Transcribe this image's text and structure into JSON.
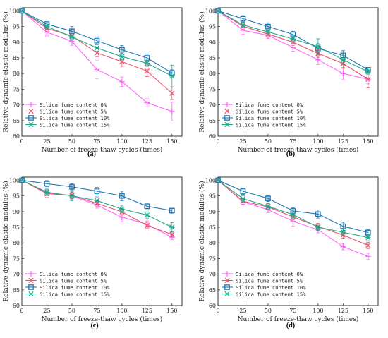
{
  "chart_data": [
    {
      "type": "line",
      "panel_label": "(a)",
      "xlabel": "Number of freeze-thaw cycles (times)",
      "ylabel": "Relative dynamic elastic modulus (%)",
      "x": [
        0,
        25,
        50,
        75,
        100,
        125,
        150
      ],
      "xlim": [
        0,
        160
      ],
      "ylim": [
        60,
        101
      ],
      "xticks": [
        "0",
        "25",
        "50",
        "75",
        "100",
        "125",
        "150"
      ],
      "yticks": [
        "60",
        "65",
        "70",
        "75",
        "80",
        "85",
        "90",
        "95",
        "100"
      ],
      "legend": "bottom-left",
      "series": [
        {
          "name": "Silica fume content 0%",
          "marker": "plus",
          "color": "#ff66ff",
          "values": [
            100,
            93.2,
            90.3,
            81.3,
            77.4,
            70.7,
            67.9
          ],
          "errors": [
            0,
            1.2,
            1.3,
            3.0,
            1.5,
            1.3,
            3.0
          ]
        },
        {
          "name": "Silica fume content 5%",
          "marker": "x",
          "color": "#e8556a",
          "values": [
            100,
            94.4,
            92.0,
            86.6,
            83.8,
            80.8,
            73.7
          ],
          "errors": [
            0,
            1.0,
            1.3,
            1.2,
            1.5,
            1.8,
            2.0
          ]
        },
        {
          "name": "Silica fume content 10%",
          "marker": "square",
          "color": "#1f77b4",
          "values": [
            100,
            95.8,
            93.5,
            90.5,
            87.6,
            85.0,
            80.2
          ],
          "errors": [
            0,
            0.8,
            1.5,
            1.2,
            1.3,
            1.2,
            1.0
          ]
        },
        {
          "name": "Silica fume content 15%",
          "marker": "cross",
          "color": "#20a88a",
          "values": [
            100,
            95.0,
            91.7,
            88.2,
            85.4,
            83.3,
            79.2
          ],
          "errors": [
            0,
            0.8,
            1.0,
            1.0,
            1.0,
            1.0,
            3.5
          ]
        }
      ]
    },
    {
      "type": "line",
      "panel_label": "(b)",
      "xlabel": "Number of freeze-thaw cycles (times)",
      "ylabel": "Relative dynamic elastic modulus (%)",
      "x": [
        0,
        25,
        50,
        75,
        100,
        125,
        150
      ],
      "xlim": [
        0,
        160
      ],
      "ylim": [
        60,
        101
      ],
      "xticks": [
        "0",
        "25",
        "50",
        "75",
        "100",
        "125",
        "150"
      ],
      "yticks": [
        "60",
        "65",
        "70",
        "75",
        "80",
        "85",
        "90",
        "95",
        "100"
      ],
      "legend": "bottom-left",
      "series": [
        {
          "name": "Silica fume content 0%",
          "marker": "plus",
          "color": "#ff66ff",
          "values": [
            100,
            93.8,
            92.2,
            88.3,
            84.4,
            80.0,
            78.2
          ],
          "errors": [
            0,
            1.3,
            1.0,
            1.2,
            1.5,
            2.0,
            1.5
          ]
        },
        {
          "name": "Silica fume content 5%",
          "marker": "x",
          "color": "#e8556a",
          "values": [
            100,
            95.1,
            92.6,
            90.0,
            86.4,
            83.2,
            78.2
          ],
          "errors": [
            0,
            1.0,
            1.0,
            1.0,
            1.2,
            1.5,
            2.8
          ]
        },
        {
          "name": "Silica fume content 10%",
          "marker": "square",
          "color": "#1f77b4",
          "values": [
            100,
            97.5,
            95.0,
            92.5,
            88.0,
            85.8,
            81.2
          ],
          "errors": [
            0,
            1.0,
            1.2,
            1.0,
            1.5,
            1.5,
            0.6
          ]
        },
        {
          "name": "Silica fume content 15%",
          "marker": "cross",
          "color": "#20a88a",
          "values": [
            100,
            95.5,
            93.3,
            91.0,
            88.6,
            84.4,
            80.6
          ],
          "errors": [
            0,
            0.8,
            1.0,
            1.0,
            2.5,
            1.5,
            0.6
          ]
        }
      ]
    },
    {
      "type": "line",
      "panel_label": "(c)",
      "xlabel": "Number of freeze-thaw cycles (times)",
      "ylabel": "Relative dynamic elastic modulus (%)",
      "x": [
        0,
        25,
        50,
        75,
        100,
        125,
        150
      ],
      "xlim": [
        0,
        160
      ],
      "ylim": [
        60,
        101
      ],
      "xticks": [
        "0",
        "25",
        "50",
        "75",
        "100",
        "125",
        "150"
      ],
      "yticks": [
        "60",
        "65",
        "70",
        "75",
        "80",
        "85",
        "90",
        "95",
        "100"
      ],
      "legend": "bottom-left",
      "series": [
        {
          "name": "Silica fume content 0%",
          "marker": "plus",
          "color": "#ff66ff",
          "values": [
            100,
            96.0,
            95.0,
            92.1,
            88.2,
            86.0,
            81.8
          ],
          "errors": [
            0,
            1.0,
            1.0,
            1.0,
            1.5,
            1.0,
            0.8
          ]
        },
        {
          "name": "Silica fume content 5%",
          "marker": "x",
          "color": "#e8556a",
          "values": [
            100,
            95.7,
            95.2,
            92.6,
            89.9,
            85.6,
            82.7
          ],
          "errors": [
            0,
            1.2,
            1.0,
            1.0,
            1.0,
            1.0,
            0.8
          ]
        },
        {
          "name": "Silica fume content 10%",
          "marker": "square",
          "color": "#1f77b4",
          "values": [
            100,
            98.9,
            97.9,
            96.5,
            95.0,
            91.7,
            90.3
          ],
          "errors": [
            0,
            1.0,
            1.0,
            1.2,
            1.5,
            0.8,
            0.8
          ]
        },
        {
          "name": "Silica fume content 15%",
          "marker": "cross",
          "color": "#20a88a",
          "values": [
            100,
            96.2,
            95.0,
            93.5,
            90.8,
            88.9,
            85.0
          ],
          "errors": [
            0,
            1.0,
            1.5,
            1.2,
            1.0,
            1.0,
            1.5
          ]
        }
      ]
    },
    {
      "type": "line",
      "panel_label": "(d)",
      "xlabel": "Number of freeze-thaw cycles (times)",
      "ylabel": "Relative dynamic elastic modulus (%)",
      "x": [
        0,
        25,
        50,
        75,
        100,
        125,
        150
      ],
      "xlim": [
        0,
        160
      ],
      "ylim": [
        60,
        101
      ],
      "xticks": [
        "0",
        "25",
        "50",
        "75",
        "100",
        "125",
        "150"
      ],
      "yticks": [
        "60",
        "65",
        "70",
        "75",
        "80",
        "85",
        "90",
        "95",
        "100"
      ],
      "legend": "bottom-left",
      "series": [
        {
          "name": "Silica fume content 0%",
          "marker": "plus",
          "color": "#ff66ff",
          "values": [
            100,
            93.1,
            90.6,
            86.9,
            84.2,
            78.8,
            75.7
          ],
          "errors": [
            0,
            1.0,
            1.0,
            1.5,
            1.0,
            1.0,
            1.0
          ]
        },
        {
          "name": "Silica fume content 5%",
          "marker": "x",
          "color": "#e8556a",
          "values": [
            100,
            93.3,
            91.5,
            88.3,
            85.2,
            82.5,
            79.2
          ],
          "errors": [
            0,
            1.0,
            1.0,
            1.0,
            1.0,
            1.0,
            1.0
          ]
        },
        {
          "name": "Silica fume content 10%",
          "marker": "square",
          "color": "#1f77b4",
          "values": [
            100,
            96.5,
            94.2,
            90.2,
            89.2,
            85.3,
            83.3
          ],
          "errors": [
            0,
            1.0,
            1.0,
            1.0,
            1.3,
            1.3,
            1.0
          ]
        },
        {
          "name": "Silica fume content 15%",
          "marker": "cross",
          "color": "#20a88a",
          "values": [
            100,
            94.1,
            91.7,
            89.0,
            85.0,
            83.4,
            81.7
          ],
          "errors": [
            0,
            1.0,
            1.0,
            1.0,
            1.0,
            1.0,
            1.0
          ]
        }
      ]
    }
  ]
}
